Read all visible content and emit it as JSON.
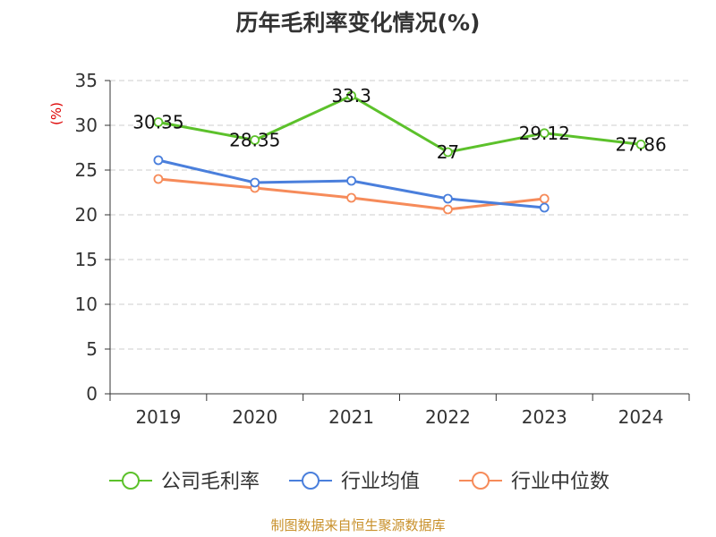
{
  "title": "历年毛利率变化情况(%)",
  "source": "制图数据来自恒生聚源数据库",
  "colors": {
    "axis": "#333333",
    "grid": "#cccccc",
    "unit": "#dd0000"
  },
  "chart_data": {
    "type": "line",
    "title": "历年毛利率变化情况(%)",
    "unit_label": "(%)",
    "categories": [
      "2019",
      "2020",
      "2021",
      "2022",
      "2023",
      "2024"
    ],
    "ylim": [
      0,
      35
    ],
    "yticks": [
      0,
      5,
      10,
      15,
      20,
      25,
      30,
      35
    ],
    "grid": true,
    "legend_position": "bottom",
    "series": [
      {
        "name": "公司毛利率",
        "color": "#5cc12b",
        "values": [
          30.35,
          28.35,
          33.3,
          27,
          29.12,
          27.86
        ],
        "labels": [
          "30.35",
          "28.35",
          "33.3",
          "27",
          "29.12",
          "27.86"
        ]
      },
      {
        "name": "行业均值",
        "color": "#4a7fdc",
        "values": [
          26.1,
          23.6,
          23.8,
          21.8,
          20.8,
          null
        ]
      },
      {
        "name": "行业中位数",
        "color": "#f68b5a",
        "values": [
          24.0,
          23.0,
          21.9,
          20.6,
          21.8,
          null
        ]
      }
    ]
  }
}
